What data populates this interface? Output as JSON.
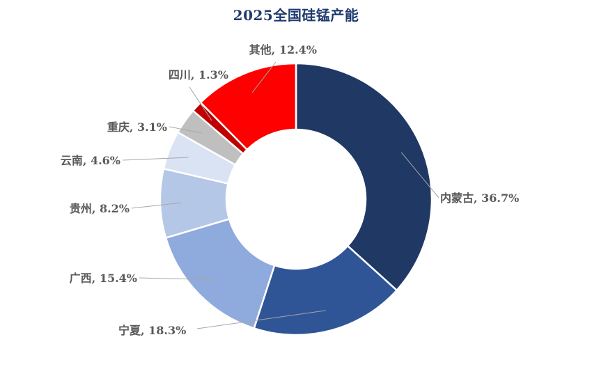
{
  "chart_data": {
    "type": "pie",
    "variant": "donut",
    "title": "2025全国硅锰产能",
    "categories": [
      "内蒙古",
      "宁夏",
      "广西",
      "贵州",
      "云南",
      "重庆",
      "四川",
      "其他"
    ],
    "values": [
      36.7,
      18.3,
      15.4,
      8.2,
      4.6,
      3.1,
      1.3,
      12.4
    ],
    "unit": "%",
    "labels": [
      "内蒙古, 36.7%",
      "宁夏, 18.3%",
      "广西, 15.4%",
      "贵州, 8.2%",
      "云南, 4.6%",
      "重庆, 3.1%",
      "四川, 1.3%",
      "其他, 12.4%"
    ],
    "colors": [
      "#203864",
      "#2f5597",
      "#8faadc",
      "#b4c7e7",
      "#dae3f3",
      "#bfbfbf",
      "#c00000",
      "#ff0000"
    ],
    "start_angle": "12 o'clock",
    "direction": "clockwise",
    "legend": "none",
    "label_color": "#595959",
    "leader_line_color": "#a6a6a6",
    "title_color": "#1f3a6e"
  }
}
